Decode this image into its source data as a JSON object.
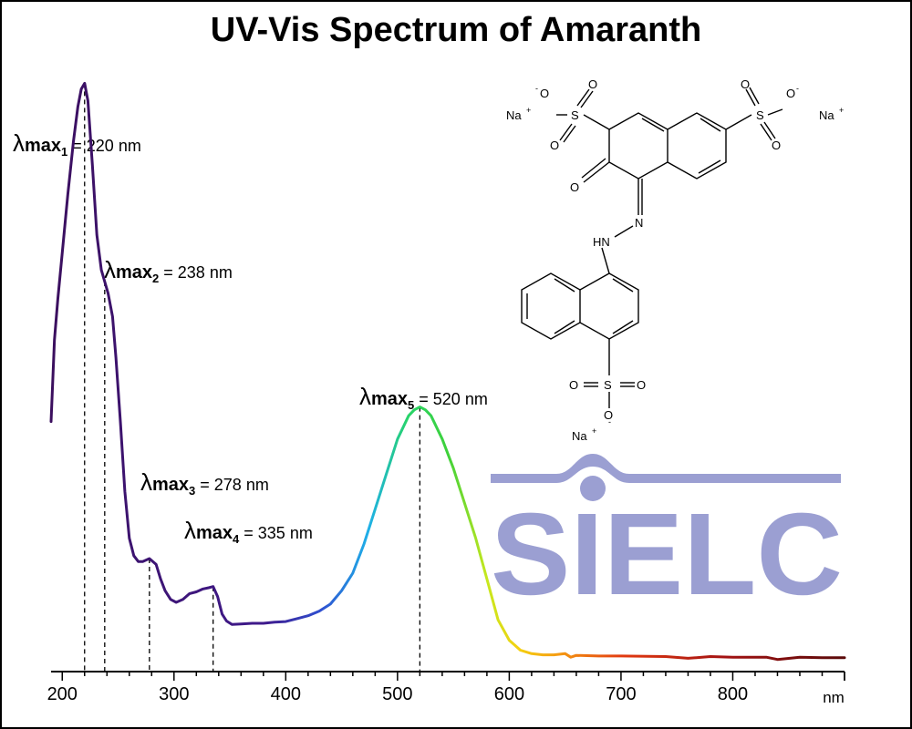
{
  "title": "UV-Vis Spectrum of Amaranth",
  "watermark": {
    "text": "SIELC",
    "color": "#9b9fd2"
  },
  "molecule": {
    "labels": {
      "o_minus_1": "O",
      "o_minus_2": "O",
      "o_minus_3": "O",
      "sup_minus": "-",
      "sup_plus": "+",
      "na1": "Na",
      "na2": "Na",
      "na3": "Na",
      "s": "S",
      "o": "O",
      "n": "N",
      "hn": "HN"
    }
  },
  "chart_data": {
    "type": "line",
    "title": "UV-Vis Spectrum of Amaranth",
    "xlabel": "nm",
    "ylabel": "",
    "xlim": [
      190,
      900
    ],
    "ylim": [
      0,
      1.0
    ],
    "x_ticks": [
      200,
      300,
      400,
      500,
      600,
      700,
      800
    ],
    "grid": false,
    "series": [
      {
        "points": [
          [
            190,
            0.41
          ],
          [
            193,
            0.55
          ],
          [
            196,
            0.62
          ],
          [
            200,
            0.7
          ],
          [
            205,
            0.8
          ],
          [
            210,
            0.89
          ],
          [
            214,
            0.95
          ],
          [
            217,
            0.98
          ],
          [
            220,
            0.99
          ],
          [
            223,
            0.96
          ],
          [
            227,
            0.85
          ],
          [
            231,
            0.73
          ],
          [
            235,
            0.67
          ],
          [
            238,
            0.65
          ],
          [
            241,
            0.63
          ],
          [
            245,
            0.59
          ],
          [
            248,
            0.52
          ],
          [
            252,
            0.41
          ],
          [
            256,
            0.29
          ],
          [
            260,
            0.21
          ],
          [
            264,
            0.18
          ],
          [
            268,
            0.17
          ],
          [
            272,
            0.17
          ],
          [
            278,
            0.175
          ],
          [
            284,
            0.165
          ],
          [
            288,
            0.14
          ],
          [
            292,
            0.12
          ],
          [
            297,
            0.105
          ],
          [
            302,
            0.1
          ],
          [
            308,
            0.105
          ],
          [
            314,
            0.115
          ],
          [
            320,
            0.118
          ],
          [
            326,
            0.123
          ],
          [
            331,
            0.125
          ],
          [
            335,
            0.127
          ],
          [
            339,
            0.11
          ],
          [
            343,
            0.08
          ],
          [
            347,
            0.068
          ],
          [
            352,
            0.062
          ],
          [
            360,
            0.063
          ],
          [
            370,
            0.064
          ],
          [
            380,
            0.064
          ],
          [
            390,
            0.066
          ],
          [
            400,
            0.067
          ],
          [
            410,
            0.072
          ],
          [
            420,
            0.077
          ],
          [
            430,
            0.085
          ],
          [
            440,
            0.097
          ],
          [
            450,
            0.12
          ],
          [
            460,
            0.15
          ],
          [
            470,
            0.2
          ],
          [
            480,
            0.26
          ],
          [
            490,
            0.32
          ],
          [
            500,
            0.38
          ],
          [
            510,
            0.42
          ],
          [
            515,
            0.43
          ],
          [
            520,
            0.435
          ],
          [
            525,
            0.43
          ],
          [
            530,
            0.42
          ],
          [
            540,
            0.38
          ],
          [
            550,
            0.33
          ],
          [
            560,
            0.27
          ],
          [
            570,
            0.21
          ],
          [
            580,
            0.14
          ],
          [
            590,
            0.07
          ],
          [
            600,
            0.035
          ],
          [
            610,
            0.018
          ],
          [
            620,
            0.012
          ],
          [
            630,
            0.01
          ],
          [
            640,
            0.01
          ],
          [
            650,
            0.012
          ],
          [
            655,
            0.006
          ],
          [
            660,
            0.009
          ],
          [
            680,
            0.008
          ],
          [
            700,
            0.008
          ],
          [
            740,
            0.007
          ],
          [
            760,
            0.004
          ],
          [
            780,
            0.007
          ],
          [
            800,
            0.006
          ],
          [
            830,
            0.006
          ],
          [
            840,
            0.002
          ],
          [
            860,
            0.006
          ],
          [
            880,
            0.005
          ],
          [
            900,
            0.005
          ]
        ]
      }
    ],
    "annotations": [
      {
        "sym": "λ",
        "mx": "max",
        "sub": "1",
        "text": " = 220 nm",
        "x": 220
      },
      {
        "sym": "λ",
        "mx": "max",
        "sub": "2",
        "text": " = 238 nm",
        "x": 238
      },
      {
        "sym": "λ",
        "mx": "max",
        "sub": "3",
        "text": " = 278 nm",
        "x": 278
      },
      {
        "sym": "λ",
        "mx": "max",
        "sub": "4",
        "text": " = 335 nm",
        "x": 335
      },
      {
        "sym": "λ",
        "mx": "max",
        "sub": "5",
        "text": " = 520 nm",
        "x": 520
      }
    ]
  }
}
